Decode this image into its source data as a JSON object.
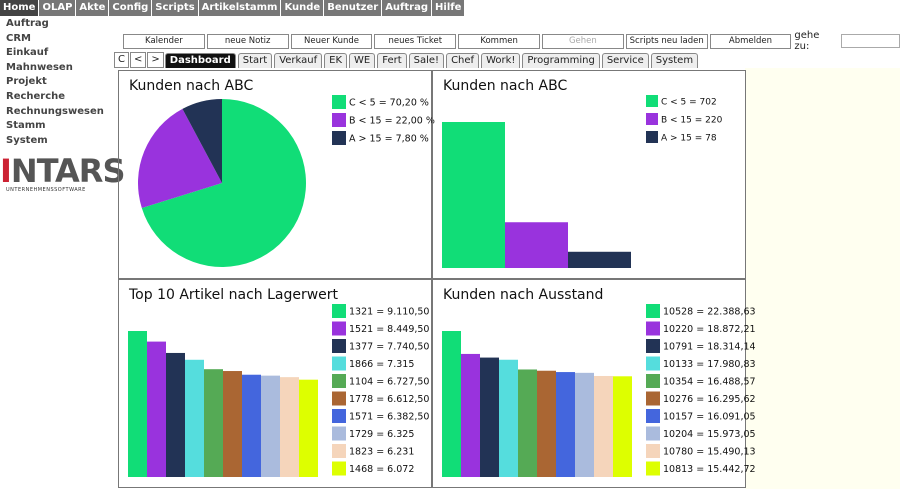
{
  "menu": [
    "Home",
    "OLAP",
    "Akte",
    "Config",
    "Scripts",
    "Artikelstamm",
    "Kunde",
    "Benutzer",
    "Auftrag",
    "Hilfe"
  ],
  "sidebar": [
    "Auftrag",
    "CRM",
    "Einkauf",
    "Mahnwesen",
    "Projekt",
    "Recherche",
    "Rechnungswesen",
    "Stamm",
    "System"
  ],
  "logo": {
    "name": "INTARS",
    "tagline": "UNTERNEHMENSSOFTWARE"
  },
  "toolbar": {
    "buttons": [
      "Kalender",
      "neue Notiz",
      "Neuer Kunde",
      "neues Ticket",
      "Kommen",
      "Gehen",
      "Scripts neu laden",
      "Abmelden"
    ],
    "goto_label": "gehe zu:"
  },
  "tabs": {
    "nav": [
      "C",
      "<",
      ">"
    ],
    "items": [
      "Dashboard",
      "Start",
      "Verkauf",
      "EK",
      "WE",
      "Fert",
      "Sale!",
      "Chef",
      "Work!",
      "Programming",
      "Service",
      "System"
    ]
  },
  "chart_data": [
    {
      "type": "pie",
      "title": "Kunden nach ABC",
      "categories": [
        "C < 5 = 70,20 %",
        "B < 15 = 22,00 %",
        "A > 15 = 7,80 %"
      ],
      "values": [
        70.2,
        22.0,
        7.8
      ],
      "colors": [
        "#11dd77",
        "#9933dd",
        "#223355"
      ]
    },
    {
      "type": "bar",
      "title": "Kunden nach ABC",
      "categories": [
        "C < 5 = 702",
        "B < 15 = 220",
        "A > 15 = 78"
      ],
      "values": [
        702,
        220,
        78
      ],
      "colors": [
        "#11dd77",
        "#9933dd",
        "#223355"
      ]
    },
    {
      "type": "bar",
      "title": "Top 10 Artikel nach Lagerwert",
      "categories": [
        "1321 = 9.110,50",
        "1521 = 8.449,50",
        "1377 = 7.740,50",
        "1866 = 7.315",
        "1104 = 6.727,50",
        "1778 = 6.612,50",
        "1571 = 6.382,50",
        "1729 = 6.325",
        "1823 = 6.231",
        "1468 = 6.072"
      ],
      "values": [
        9110.5,
        8449.5,
        7740.5,
        7315,
        6727.5,
        6612.5,
        6382.5,
        6325,
        6231,
        6072
      ],
      "colors": [
        "#11dd77",
        "#9933dd",
        "#223355",
        "#55dddd",
        "#55aa55",
        "#aa6633",
        "#4466dd",
        "#aabbdd",
        "#f5d5bb",
        "#ddff00"
      ]
    },
    {
      "type": "bar",
      "title": "Kunden nach Ausstand",
      "categories": [
        "10528 = 22.388,63",
        "10220 = 18.872,21",
        "10791 = 18.314,14",
        "10133 = 17.980,83",
        "10354 = 16.488,57",
        "10276 = 16.295,62",
        "10157 = 16.091,05",
        "10204 = 15.973,05",
        "10780 = 15.490,13",
        "10813 = 15.442,72"
      ],
      "values": [
        22388.63,
        18872.21,
        18314.14,
        17980.83,
        16488.57,
        16295.62,
        16091.05,
        15973.05,
        15490.13,
        15442.72
      ],
      "colors": [
        "#11dd77",
        "#9933dd",
        "#223355",
        "#55dddd",
        "#55aa55",
        "#aa6633",
        "#4466dd",
        "#aabbdd",
        "#f5d5bb",
        "#ddff00"
      ]
    }
  ]
}
